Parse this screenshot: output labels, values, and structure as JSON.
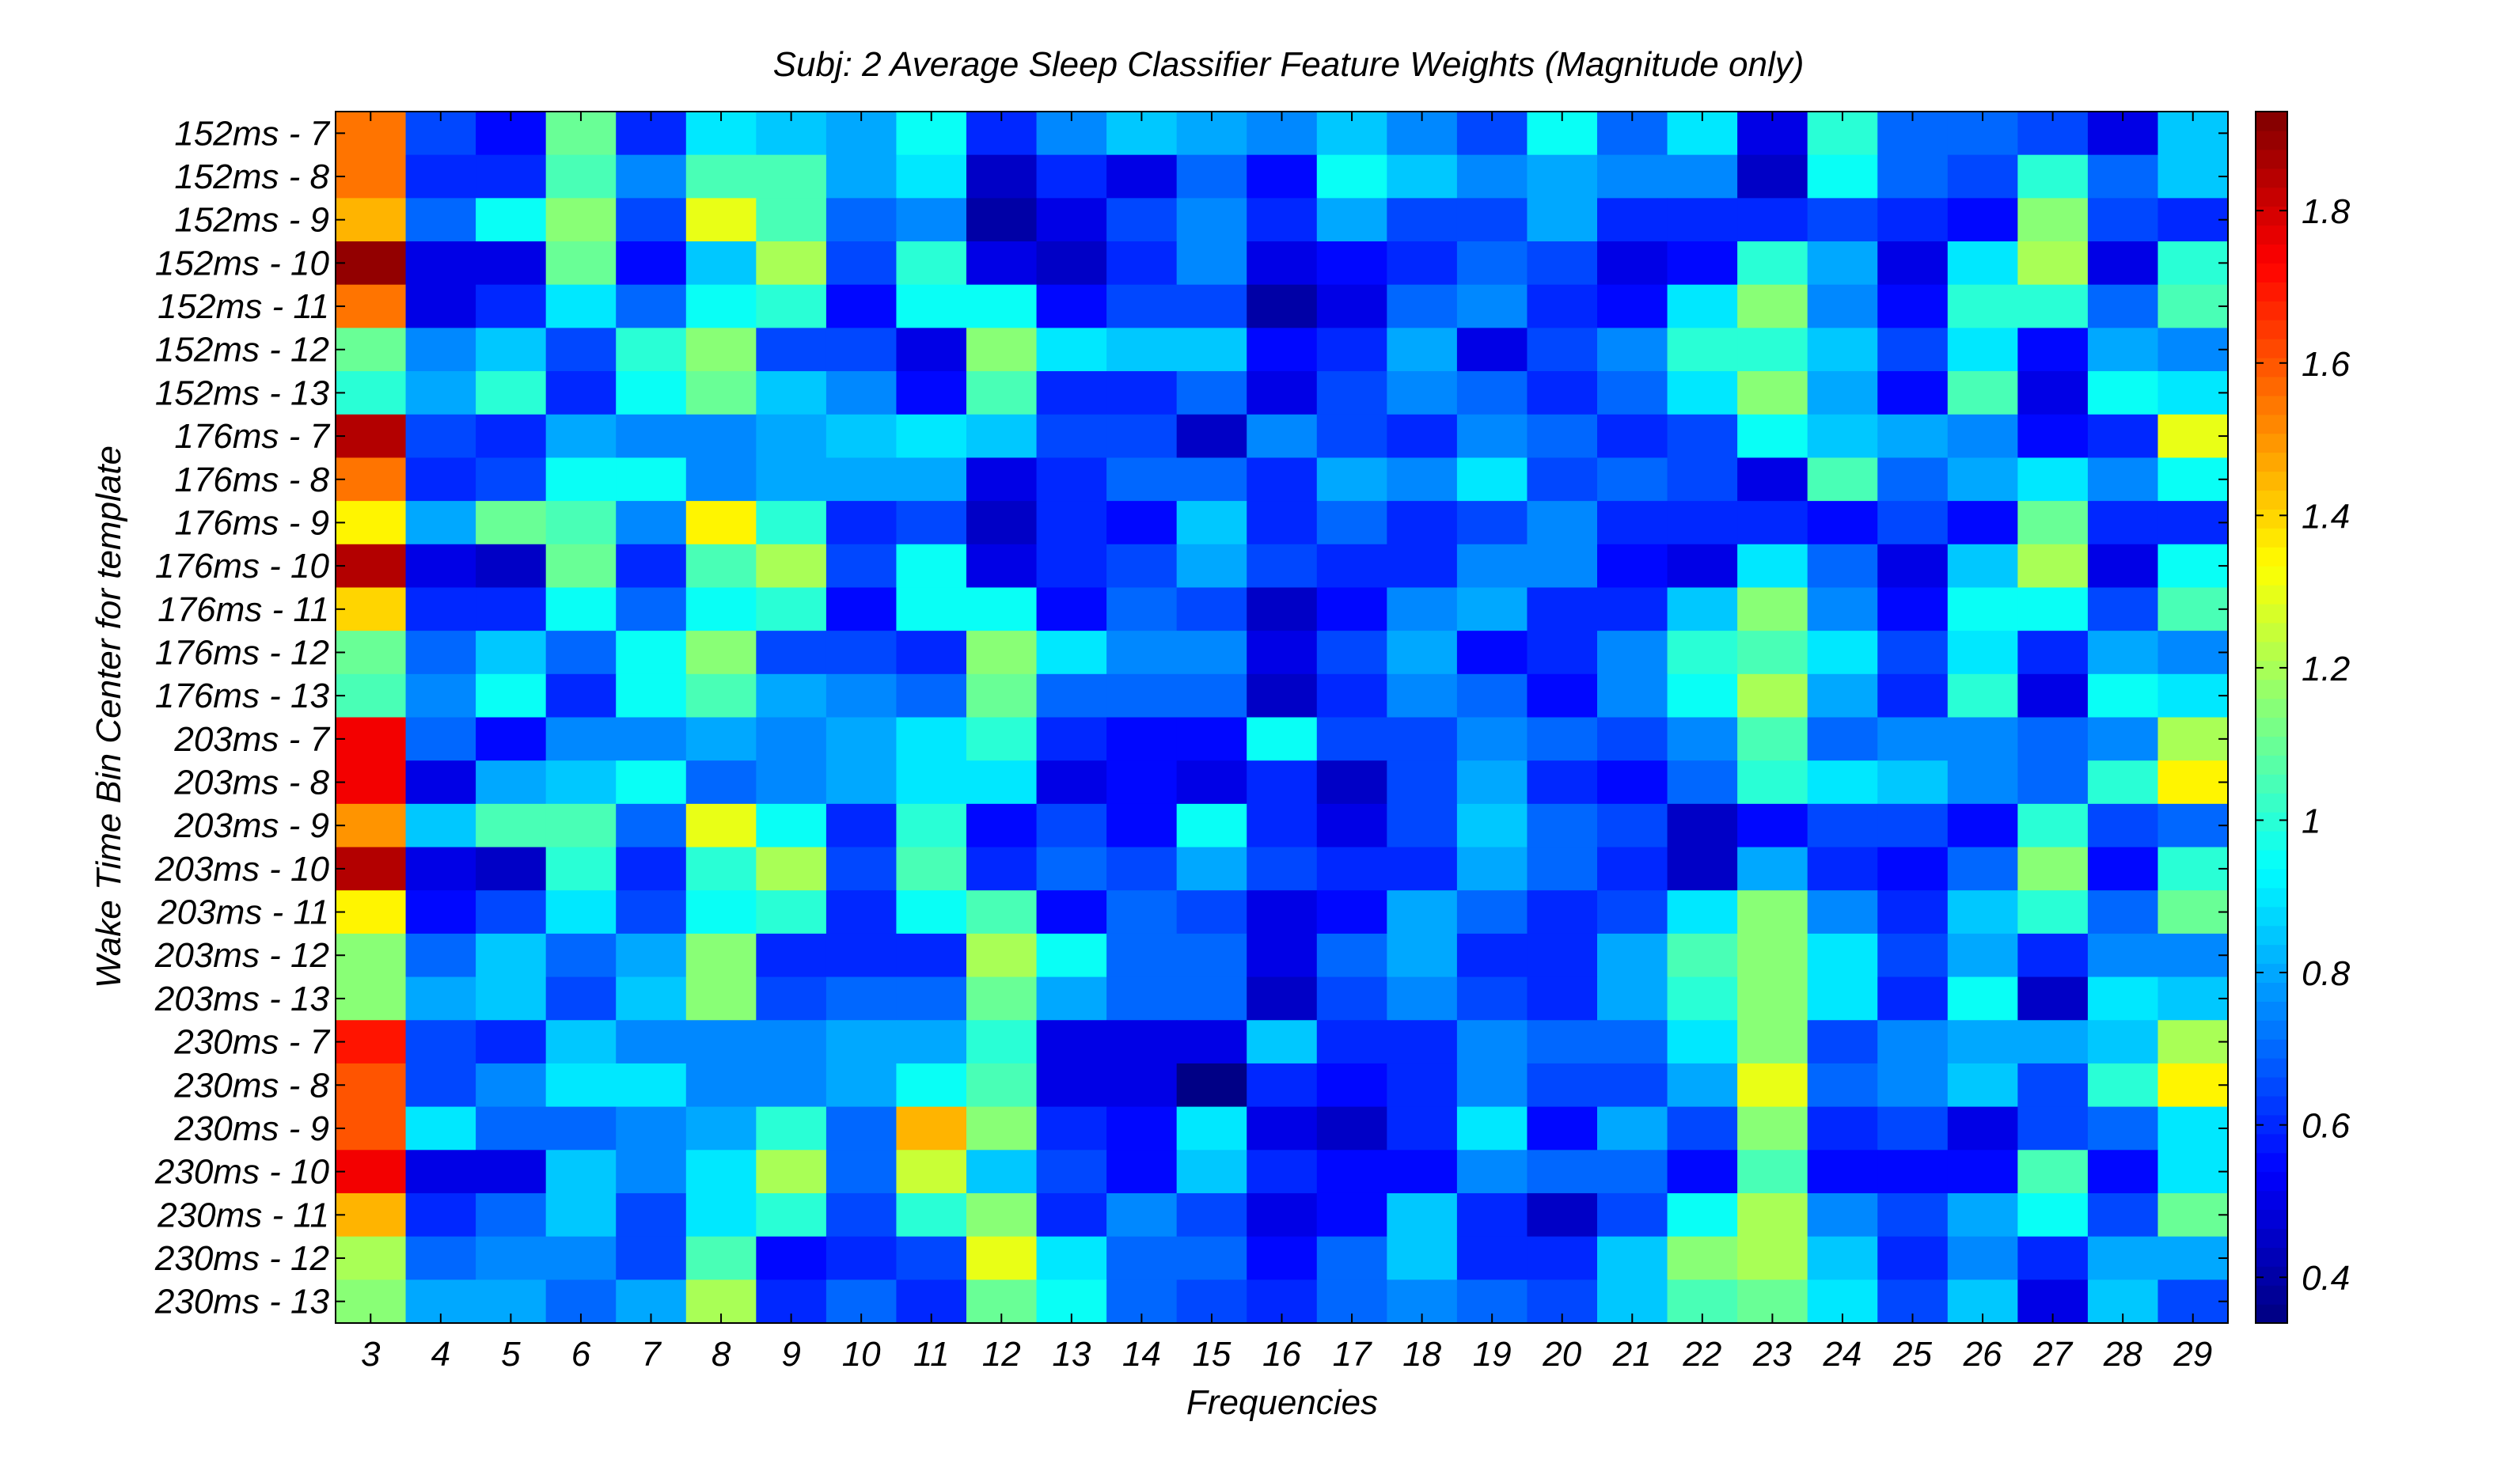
{
  "chart_data": {
    "type": "heatmap",
    "title": "Subj: 2 Average Sleep Classifier Feature Weights (Magnitude only)",
    "xlabel": "Frequencies",
    "ylabel": "Wake Time Bin Center for template",
    "x_categories": [
      "3",
      "4",
      "5",
      "6",
      "7",
      "8",
      "9",
      "10",
      "11",
      "12",
      "13",
      "14",
      "15",
      "16",
      "17",
      "18",
      "19",
      "20",
      "21",
      "22",
      "23",
      "24",
      "25",
      "26",
      "27",
      "28",
      "29"
    ],
    "y_categories": [
      "152ms - 7",
      "152ms - 8",
      "152ms - 9",
      "152ms - 10",
      "152ms - 11",
      "152ms - 12",
      "152ms - 13",
      "176ms - 7",
      "176ms - 8",
      "176ms - 9",
      "176ms - 10",
      "176ms - 11",
      "176ms - 12",
      "176ms - 13",
      "203ms - 7",
      "203ms - 8",
      "203ms - 9",
      "203ms - 10",
      "203ms - 11",
      "203ms - 12",
      "203ms - 13",
      "230ms - 7",
      "230ms - 8",
      "230ms - 9",
      "230ms - 10",
      "230ms - 11",
      "230ms - 12",
      "230ms - 13"
    ],
    "values": [
      [
        1.55,
        0.65,
        0.55,
        1.1,
        0.6,
        0.9,
        0.85,
        0.8,
        0.95,
        0.6,
        0.75,
        0.85,
        0.8,
        0.75,
        0.85,
        0.75,
        0.65,
        0.95,
        0.7,
        0.9,
        0.5,
        1.0,
        0.7,
        0.7,
        0.65,
        0.5,
        0.85
      ],
      [
        1.55,
        0.6,
        0.6,
        1.05,
        0.75,
        1.05,
        1.05,
        0.8,
        0.9,
        0.45,
        0.6,
        0.5,
        0.7,
        0.55,
        0.95,
        0.85,
        0.75,
        0.8,
        0.75,
        0.75,
        0.45,
        0.95,
        0.7,
        0.65,
        1.0,
        0.7,
        0.85
      ],
      [
        1.45,
        0.7,
        0.95,
        1.15,
        0.65,
        1.3,
        1.05,
        0.7,
        0.75,
        0.4,
        0.5,
        0.65,
        0.75,
        0.6,
        0.8,
        0.65,
        0.65,
        0.8,
        0.6,
        0.6,
        0.6,
        0.65,
        0.6,
        0.55,
        1.15,
        0.65,
        0.6
      ],
      [
        1.9,
        0.5,
        0.5,
        1.1,
        0.55,
        0.85,
        1.2,
        0.65,
        1.0,
        0.5,
        0.45,
        0.6,
        0.75,
        0.5,
        0.55,
        0.6,
        0.7,
        0.65,
        0.5,
        0.55,
        1.0,
        0.8,
        0.5,
        0.9,
        1.2,
        0.5,
        1.0
      ],
      [
        1.55,
        0.5,
        0.6,
        0.9,
        0.7,
        0.95,
        1.0,
        0.55,
        0.95,
        0.95,
        0.55,
        0.65,
        0.65,
        0.4,
        0.5,
        0.7,
        0.75,
        0.6,
        0.55,
        0.9,
        1.15,
        0.75,
        0.55,
        1.0,
        1.0,
        0.7,
        1.05
      ],
      [
        1.1,
        0.75,
        0.85,
        0.65,
        1.0,
        1.15,
        0.65,
        0.65,
        0.5,
        1.15,
        0.9,
        0.85,
        0.85,
        0.55,
        0.6,
        0.8,
        0.5,
        0.65,
        0.75,
        1.0,
        1.0,
        0.85,
        0.65,
        0.9,
        0.55,
        0.8,
        0.75
      ],
      [
        1.0,
        0.8,
        1.0,
        0.6,
        0.95,
        1.1,
        0.85,
        0.75,
        0.55,
        1.05,
        0.6,
        0.6,
        0.7,
        0.5,
        0.65,
        0.75,
        0.7,
        0.6,
        0.7,
        0.9,
        1.15,
        0.8,
        0.55,
        1.05,
        0.5,
        0.95,
        0.9
      ],
      [
        1.85,
        0.65,
        0.6,
        0.8,
        0.75,
        0.75,
        0.8,
        0.85,
        0.9,
        0.85,
        0.65,
        0.65,
        0.45,
        0.75,
        0.65,
        0.6,
        0.75,
        0.7,
        0.6,
        0.65,
        0.95,
        0.85,
        0.8,
        0.75,
        0.55,
        0.6,
        1.3
      ],
      [
        1.55,
        0.6,
        0.65,
        0.95,
        0.95,
        0.75,
        0.8,
        0.8,
        0.8,
        0.5,
        0.6,
        0.7,
        0.7,
        0.6,
        0.8,
        0.75,
        0.9,
        0.65,
        0.7,
        0.65,
        0.5,
        1.05,
        0.7,
        0.8,
        0.9,
        0.75,
        0.95
      ],
      [
        1.35,
        0.8,
        1.1,
        1.05,
        0.75,
        1.35,
        1.0,
        0.6,
        0.65,
        0.45,
        0.6,
        0.55,
        0.85,
        0.6,
        0.7,
        0.6,
        0.65,
        0.75,
        0.6,
        0.6,
        0.6,
        0.55,
        0.65,
        0.55,
        1.1,
        0.6,
        0.6
      ],
      [
        1.85,
        0.5,
        0.45,
        1.1,
        0.6,
        1.05,
        1.2,
        0.65,
        0.95,
        0.5,
        0.6,
        0.65,
        0.8,
        0.65,
        0.6,
        0.6,
        0.75,
        0.75,
        0.55,
        0.5,
        0.9,
        0.7,
        0.5,
        0.85,
        1.2,
        0.5,
        0.95
      ],
      [
        1.4,
        0.6,
        0.6,
        0.95,
        0.7,
        0.95,
        1.0,
        0.55,
        0.95,
        0.95,
        0.55,
        0.7,
        0.65,
        0.45,
        0.55,
        0.75,
        0.8,
        0.6,
        0.6,
        0.85,
        1.15,
        0.75,
        0.55,
        0.95,
        0.95,
        0.65,
        1.05
      ],
      [
        1.1,
        0.7,
        0.85,
        0.7,
        0.95,
        1.15,
        0.65,
        0.65,
        0.6,
        1.15,
        0.9,
        0.75,
        0.75,
        0.5,
        0.65,
        0.8,
        0.55,
        0.6,
        0.75,
        1.0,
        1.05,
        0.9,
        0.65,
        0.9,
        0.6,
        0.8,
        0.75
      ],
      [
        1.05,
        0.75,
        0.95,
        0.6,
        0.95,
        1.05,
        0.8,
        0.75,
        0.7,
        1.1,
        0.7,
        0.7,
        0.7,
        0.45,
        0.6,
        0.75,
        0.7,
        0.55,
        0.75,
        0.95,
        1.2,
        0.8,
        0.6,
        1.0,
        0.5,
        0.95,
        0.9
      ],
      [
        1.75,
        0.7,
        0.55,
        0.75,
        0.75,
        0.8,
        0.75,
        0.8,
        0.9,
        1.0,
        0.6,
        0.55,
        0.55,
        0.95,
        0.65,
        0.65,
        0.75,
        0.7,
        0.65,
        0.75,
        1.05,
        0.7,
        0.75,
        0.75,
        0.7,
        0.75,
        1.2
      ],
      [
        1.75,
        0.5,
        0.8,
        0.85,
        0.95,
        0.7,
        0.75,
        0.8,
        0.9,
        0.9,
        0.5,
        0.55,
        0.5,
        0.6,
        0.45,
        0.65,
        0.8,
        0.6,
        0.55,
        0.7,
        1.0,
        0.9,
        0.85,
        0.75,
        0.7,
        1.0,
        1.35
      ],
      [
        1.5,
        0.85,
        1.05,
        1.05,
        0.7,
        1.3,
        0.95,
        0.6,
        1.0,
        0.55,
        0.65,
        0.55,
        0.95,
        0.6,
        0.5,
        0.65,
        0.85,
        0.7,
        0.65,
        0.45,
        0.55,
        0.65,
        0.65,
        0.55,
        1.0,
        0.65,
        0.7
      ],
      [
        1.85,
        0.5,
        0.45,
        1.0,
        0.6,
        1.0,
        1.2,
        0.65,
        1.05,
        0.6,
        0.7,
        0.65,
        0.8,
        0.65,
        0.6,
        0.6,
        0.8,
        0.7,
        0.6,
        0.45,
        0.8,
        0.6,
        0.55,
        0.7,
        1.15,
        0.55,
        1.0
      ],
      [
        1.35,
        0.55,
        0.65,
        0.9,
        0.65,
        0.95,
        1.0,
        0.6,
        0.95,
        1.05,
        0.55,
        0.7,
        0.65,
        0.5,
        0.55,
        0.8,
        0.7,
        0.6,
        0.65,
        0.9,
        1.15,
        0.75,
        0.6,
        0.85,
        1.0,
        0.7,
        1.1
      ],
      [
        1.15,
        0.7,
        0.85,
        0.7,
        0.8,
        1.15,
        0.6,
        0.6,
        0.6,
        1.2,
        0.95,
        0.7,
        0.7,
        0.5,
        0.7,
        0.8,
        0.6,
        0.6,
        0.8,
        1.05,
        1.15,
        0.9,
        0.65,
        0.8,
        0.6,
        0.75,
        0.75
      ],
      [
        1.15,
        0.8,
        0.85,
        0.65,
        0.85,
        1.15,
        0.65,
        0.7,
        0.7,
        1.1,
        0.8,
        0.7,
        0.7,
        0.45,
        0.65,
        0.75,
        0.65,
        0.6,
        0.8,
        1.0,
        1.15,
        0.9,
        0.6,
        0.95,
        0.45,
        0.9,
        0.85
      ],
      [
        1.7,
        0.65,
        0.6,
        0.85,
        0.75,
        0.75,
        0.75,
        0.8,
        0.8,
        1.0,
        0.5,
        0.5,
        0.5,
        0.85,
        0.6,
        0.6,
        0.75,
        0.7,
        0.7,
        0.9,
        1.15,
        0.65,
        0.75,
        0.8,
        0.8,
        0.85,
        1.2
      ],
      [
        1.6,
        0.65,
        0.75,
        0.9,
        0.9,
        0.75,
        0.75,
        0.8,
        0.95,
        1.05,
        0.5,
        0.5,
        0.35,
        0.6,
        0.55,
        0.6,
        0.75,
        0.65,
        0.65,
        0.8,
        1.3,
        0.7,
        0.75,
        0.85,
        0.65,
        1.0,
        1.35
      ],
      [
        1.6,
        0.9,
        0.7,
        0.7,
        0.75,
        0.8,
        1.0,
        0.7,
        1.45,
        1.15,
        0.6,
        0.55,
        0.9,
        0.5,
        0.45,
        0.6,
        0.9,
        0.55,
        0.8,
        0.65,
        1.15,
        0.6,
        0.65,
        0.5,
        0.65,
        0.7,
        0.9
      ],
      [
        1.75,
        0.5,
        0.5,
        0.85,
        0.75,
        0.9,
        1.2,
        0.7,
        1.25,
        0.85,
        0.65,
        0.55,
        0.85,
        0.6,
        0.55,
        0.55,
        0.75,
        0.7,
        0.7,
        0.55,
        1.05,
        0.55,
        0.55,
        0.55,
        1.05,
        0.55,
        0.9
      ],
      [
        1.45,
        0.6,
        0.7,
        0.85,
        0.65,
        0.9,
        1.0,
        0.65,
        1.0,
        1.15,
        0.6,
        0.75,
        0.65,
        0.5,
        0.55,
        0.85,
        0.6,
        0.45,
        0.65,
        0.95,
        1.2,
        0.75,
        0.65,
        0.8,
        0.95,
        0.65,
        1.1
      ],
      [
        1.2,
        0.7,
        0.75,
        0.75,
        0.65,
        1.05,
        0.55,
        0.6,
        0.65,
        1.3,
        0.9,
        0.7,
        0.7,
        0.55,
        0.7,
        0.85,
        0.6,
        0.6,
        0.85,
        1.15,
        1.2,
        0.85,
        0.6,
        0.75,
        0.6,
        0.8,
        0.8
      ],
      [
        1.15,
        0.8,
        0.8,
        0.7,
        0.8,
        1.2,
        0.6,
        0.7,
        0.6,
        1.1,
        0.95,
        0.7,
        0.65,
        0.6,
        0.7,
        0.75,
        0.7,
        0.65,
        0.85,
        1.05,
        1.1,
        0.9,
        0.65,
        0.85,
        0.5,
        0.85,
        0.65
      ]
    ],
    "colorscale": "jet",
    "color_min": 0.34,
    "color_max": 1.93,
    "colorbar_ticks": [
      "0.4",
      "0.6",
      "0.8",
      "1",
      "1.2",
      "1.4",
      "1.6",
      "1.8"
    ]
  }
}
